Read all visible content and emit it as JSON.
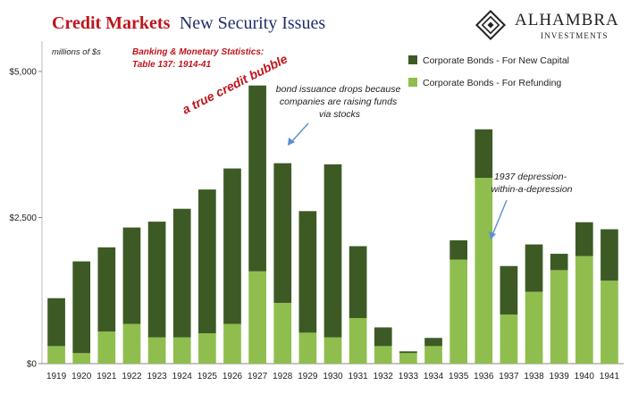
{
  "header": {
    "title_part1": "Credit Markets",
    "title_part2": "New Security Issues",
    "logo_name": "ALHAMBRA",
    "logo_sub": "INVESTMENTS"
  },
  "colors": {
    "new_capital": "#3d5a25",
    "refunding": "#8fbe4e",
    "title_red": "#c0141c",
    "title_blue": "#1f2f6e",
    "annotation_red": "#c0141c",
    "arrow_blue": "#5b8fd0"
  },
  "chart_data": {
    "type": "bar",
    "stacked": true,
    "unit_label": "millions of $s",
    "source_line1": "Banking & Monetary Statistics:",
    "source_line2": "Table 137: 1914-41",
    "categories": [
      "1919",
      "1920",
      "1921",
      "1922",
      "1923",
      "1924",
      "1925",
      "1926",
      "1927",
      "1928",
      "1929",
      "1930",
      "1931",
      "1932",
      "1933",
      "1934",
      "1935",
      "1936",
      "1937",
      "1938",
      "1939",
      "1940",
      "1941"
    ],
    "series": [
      {
        "name": "Corporate Bonds - For Refunding",
        "color": "#8fbe4e",
        "values": [
          300,
          180,
          550,
          680,
          450,
          450,
          520,
          680,
          1580,
          1040,
          530,
          450,
          780,
          300,
          180,
          300,
          1780,
          3180,
          840,
          1230,
          1600,
          1840,
          1420
        ]
      },
      {
        "name": "Corporate Bonds - For New Capital",
        "color": "#3d5a25",
        "values": [
          820,
          1570,
          1440,
          1650,
          1980,
          2200,
          2460,
          2660,
          3180,
          2390,
          2080,
          2960,
          1230,
          320,
          30,
          140,
          330,
          830,
          830,
          810,
          280,
          580,
          880
        ]
      }
    ],
    "legend_order": [
      1,
      0
    ],
    "y_ticks": [
      {
        "value": 0,
        "label": "$0"
      },
      {
        "value": 2500,
        "label": "$2,500"
      },
      {
        "value": 5000,
        "label": "$5,000"
      }
    ],
    "ylim": [
      0,
      5000
    ],
    "legend_position": "top-right",
    "annotations": {
      "bubble": "a true credit bubble",
      "stocks": [
        "bond issuance drops because",
        "companies are raising funds",
        "via stocks"
      ],
      "depression": [
        "1937 depression-",
        "within-a-depression"
      ]
    }
  }
}
